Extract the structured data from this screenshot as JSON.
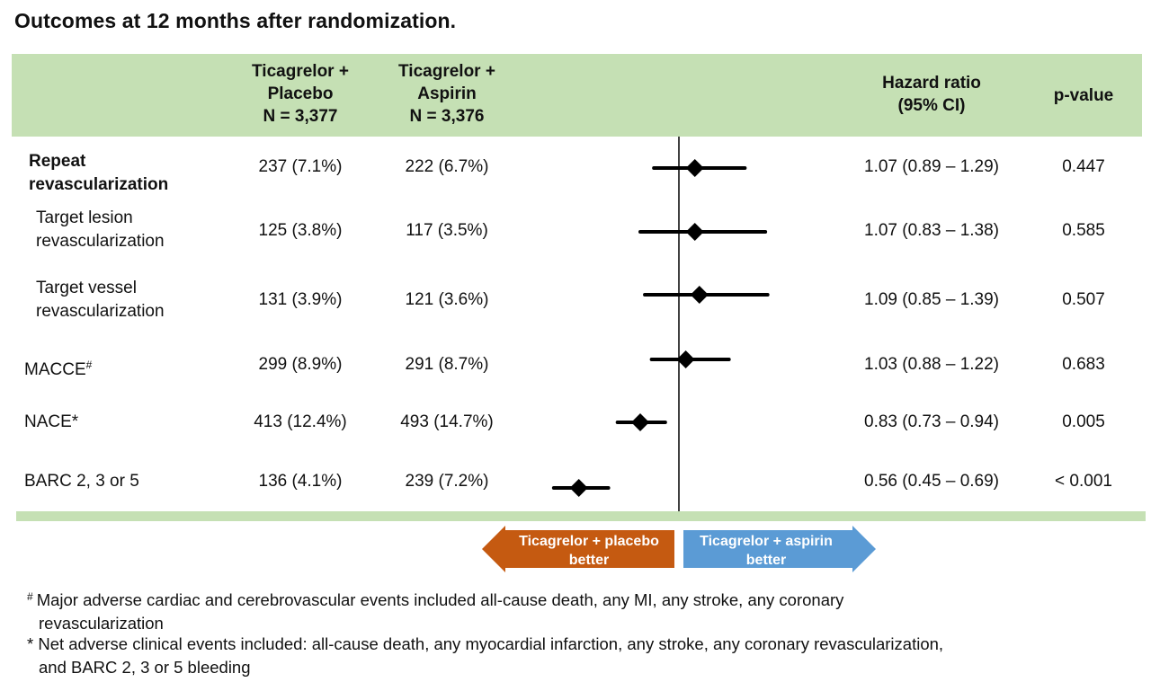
{
  "title": "Outcomes at 12 months after randomization.",
  "header": {
    "col1": [
      "Ticagrelor +",
      "Placebo",
      "N = 3,377"
    ],
    "col2": [
      "Ticagrelor +",
      "Aspirin",
      "N = 3,376"
    ],
    "hr": [
      "Hazard ratio",
      "(95% CI)"
    ],
    "pvalue": "p-value"
  },
  "rows": [
    {
      "label_lines": [
        "Repeat",
        "revascularization"
      ],
      "mark": "",
      "col1": "237 (7.1%)",
      "col2": "222 (6.7%)",
      "hr_text": "1.07 (0.89 – 1.29)",
      "p": "0.447"
    },
    {
      "label_lines": [
        "Target lesion",
        "revascularization"
      ],
      "mark": "",
      "col1": "125 (3.8%)",
      "col2": "117 (3.5%)",
      "hr_text": "1.07 (0.83 – 1.38)",
      "p": "0.585"
    },
    {
      "label_lines": [
        "Target vessel",
        "revascularization"
      ],
      "mark": "",
      "col1": "131 (3.9%)",
      "col2": "121 (3.6%)",
      "hr_text": "1.09 (0.85 – 1.39)",
      "p": "0.507"
    },
    {
      "label_lines": [
        "MACCE"
      ],
      "mark": "#",
      "col1": "299 (8.9%)",
      "col2": "291 (8.7%)",
      "hr_text": "1.03 (0.88 – 1.22)",
      "p": "0.683"
    },
    {
      "label_lines": [
        "NACE*"
      ],
      "mark": "",
      "col1": "413 (12.4%)",
      "col2": "493 (14.7%)",
      "hr_text": "0.83 (0.73 – 0.94)",
      "p": "0.005"
    },
    {
      "label_lines": [
        "BARC 2, 3 or 5"
      ],
      "mark": "",
      "col1": "136 (4.1%)",
      "col2": "239 (7.2%)",
      "hr_text": "0.56 (0.45 – 0.69)",
      "p": "< 0.001"
    }
  ],
  "chart_data": {
    "type": "forest",
    "reference_line": 1,
    "outcomes": [
      "Repeat revascularization",
      "Target lesion revascularization",
      "Target vessel revascularization",
      "MACCE",
      "NACE",
      "BARC 2, 3 or 5"
    ],
    "hr": [
      1.07,
      1.07,
      1.09,
      1.03,
      0.83,
      0.56
    ],
    "ci_low": [
      0.89,
      0.83,
      0.85,
      0.88,
      0.73,
      0.45
    ],
    "ci_high": [
      1.29,
      1.38,
      1.39,
      1.22,
      0.94,
      0.69
    ],
    "p_values": [
      "0.447",
      "0.585",
      "0.507",
      "0.683",
      "0.005",
      "< 0.001"
    ]
  },
  "arrows": {
    "left_lines": [
      "Ticagrelor + placebo",
      "better"
    ],
    "left_color": "#c55a11",
    "right_lines": [
      "Ticagrelor + aspirin",
      "better"
    ],
    "right_color": "#5b9bd5"
  },
  "footnotes": [
    {
      "symbol": "#",
      "lines": [
        "Major adverse cardiac and cerebrovascular events included all-cause death, any MI, any stroke, any coronary",
        "revascularization"
      ]
    },
    {
      "symbol": "*",
      "lines": [
        "Net adverse clinical events included: all-cause death, any myocardial infarction, any stroke, any coronary revascularization,",
        "and BARC 2, 3 or 5 bleeding"
      ]
    }
  ]
}
